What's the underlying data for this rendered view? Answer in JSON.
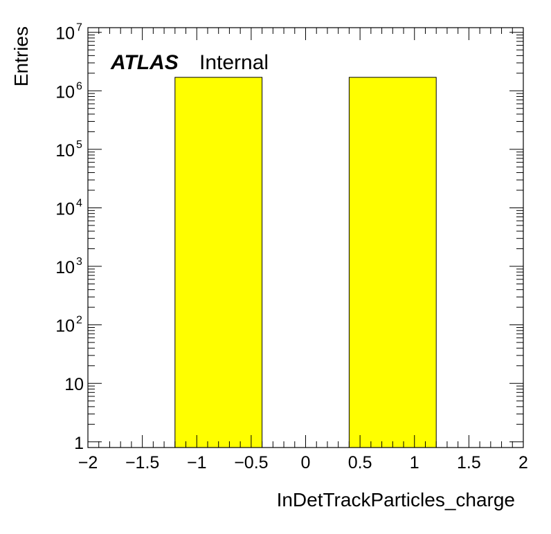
{
  "chart_data": {
    "type": "bar",
    "xlabel": "InDetTrackParticles_charge",
    "ylabel": "Entries",
    "xlim": [
      -2,
      2
    ],
    "ylim": [
      0.8,
      12000000
    ],
    "y_scale": "log",
    "bins": [
      {
        "x_low": -1.2,
        "x_high": -0.4,
        "value": 1700000
      },
      {
        "x_low": 0.4,
        "x_high": 1.2,
        "value": 1700000
      }
    ],
    "bar_color": "#ffff00",
    "x_ticks": [
      {
        "value": -2,
        "label": "−2"
      },
      {
        "value": -1.5,
        "label": "−1.5"
      },
      {
        "value": -1,
        "label": "−1"
      },
      {
        "value": -0.5,
        "label": "−0.5"
      },
      {
        "value": 0,
        "label": "0"
      },
      {
        "value": 0.5,
        "label": "0.5"
      },
      {
        "value": 1,
        "label": "1"
      },
      {
        "value": 1.5,
        "label": "1.5"
      },
      {
        "value": 2,
        "label": "2"
      }
    ],
    "y_ticks": [
      {
        "value": 1,
        "base": "1",
        "exp": ""
      },
      {
        "value": 10,
        "base": "10",
        "exp": ""
      },
      {
        "value": 100,
        "base": "10",
        "exp": "2"
      },
      {
        "value": 1000,
        "base": "10",
        "exp": "3"
      },
      {
        "value": 10000,
        "base": "10",
        "exp": "4"
      },
      {
        "value": 100000,
        "base": "10",
        "exp": "5"
      },
      {
        "value": 1000000,
        "base": "10",
        "exp": "6"
      },
      {
        "value": 10000000,
        "base": "10",
        "exp": "7"
      }
    ],
    "annotation": {
      "experiment": "ATLAS",
      "status": "Internal"
    }
  }
}
